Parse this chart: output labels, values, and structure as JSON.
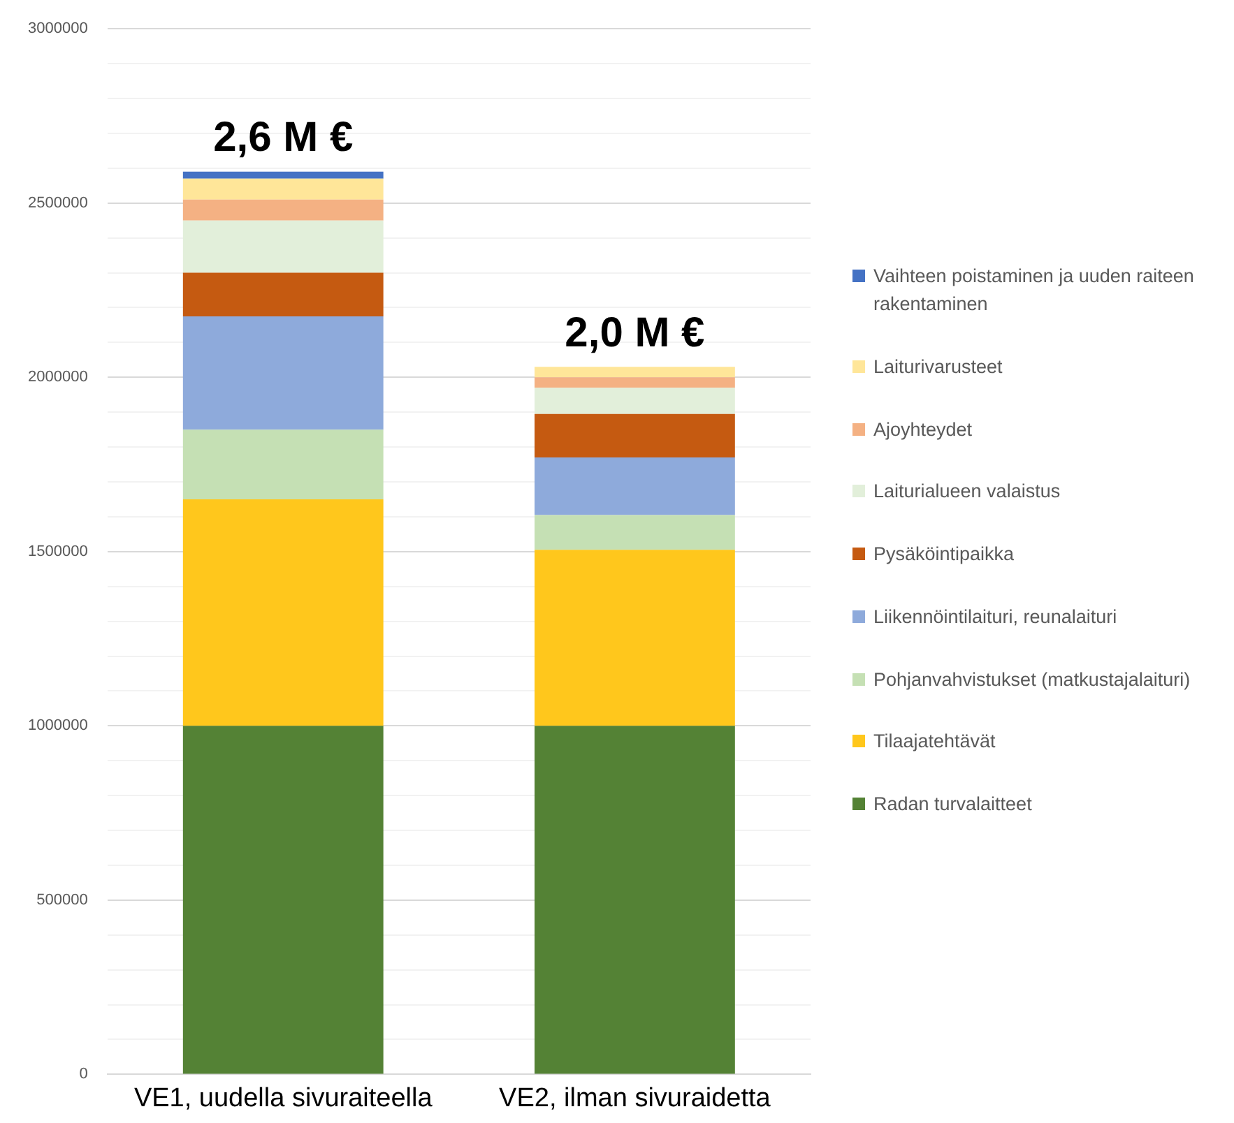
{
  "chart_data": {
    "type": "bar",
    "stacked": true,
    "categories": [
      "VE1, uudella sivuraiteella",
      "VE2, ilman sivuraidetta"
    ],
    "series": [
      {
        "name": "Radan turvalaitteet",
        "color": "#548235",
        "values": [
          1000000,
          1000000
        ]
      },
      {
        "name": "Tilaajatehtävät",
        "color": "#ffc71c",
        "values": [
          650000,
          505000
        ]
      },
      {
        "name": "Pohjanvahvistukset (matkustajalaituri)",
        "color": "#c5e0b4",
        "values": [
          200000,
          100000
        ]
      },
      {
        "name": "Liikennöintilaituri, reunalaituri",
        "color": "#8eaadb",
        "values": [
          325000,
          165000
        ]
      },
      {
        "name": "Pysäköintipaikka",
        "color": "#c55a11",
        "values": [
          125000,
          125000
        ]
      },
      {
        "name": "Laiturialueen valaistus",
        "color": "#e2efda",
        "values": [
          150000,
          75000
        ]
      },
      {
        "name": "Ajoyhteydet",
        "color": "#f4b183",
        "values": [
          60000,
          30000
        ]
      },
      {
        "name": "Laiturivarusteet",
        "color": "#ffe699",
        "values": [
          60000,
          30000
        ]
      },
      {
        "name": "Vaihteen poistaminen ja uuden raiteen rakentaminen",
        "color": "#4472c4",
        "values": [
          20000,
          0
        ]
      }
    ],
    "totals": [
      "2,6 M €",
      "2,0 M €"
    ],
    "ylim": [
      0,
      3000000
    ],
    "yticks": [
      0,
      {
        "value": 100000,
        "label": null
      },
      {
        "value": 200000,
        "label": null
      },
      {
        "value": 300000,
        "label": null
      },
      {
        "value": 400000,
        "label": null
      },
      500000,
      {
        "value": 600000,
        "label": null
      },
      {
        "value": 700000,
        "label": null
      },
      {
        "value": 800000,
        "label": null
      },
      {
        "value": 900000,
        "label": null
      },
      1000000,
      {
        "value": 1100000,
        "label": null
      },
      {
        "value": 1200000,
        "label": null
      },
      {
        "value": 1300000,
        "label": null
      },
      {
        "value": 1400000,
        "label": null
      },
      1500000,
      {
        "value": 1600000,
        "label": null
      },
      {
        "value": 1700000,
        "label": null
      },
      {
        "value": 1800000,
        "label": null
      },
      {
        "value": 1900000,
        "label": null
      },
      2000000,
      {
        "value": 2100000,
        "label": null
      },
      {
        "value": 2200000,
        "label": null
      },
      {
        "value": 2300000,
        "label": null
      },
      {
        "value": 2400000,
        "label": null
      },
      2500000,
      {
        "value": 2600000,
        "label": null
      },
      {
        "value": 2700000,
        "label": null
      },
      {
        "value": 2800000,
        "label": null
      },
      {
        "value": 2900000,
        "label": null
      },
      3000000
    ],
    "grid": "y",
    "legend": "right"
  }
}
